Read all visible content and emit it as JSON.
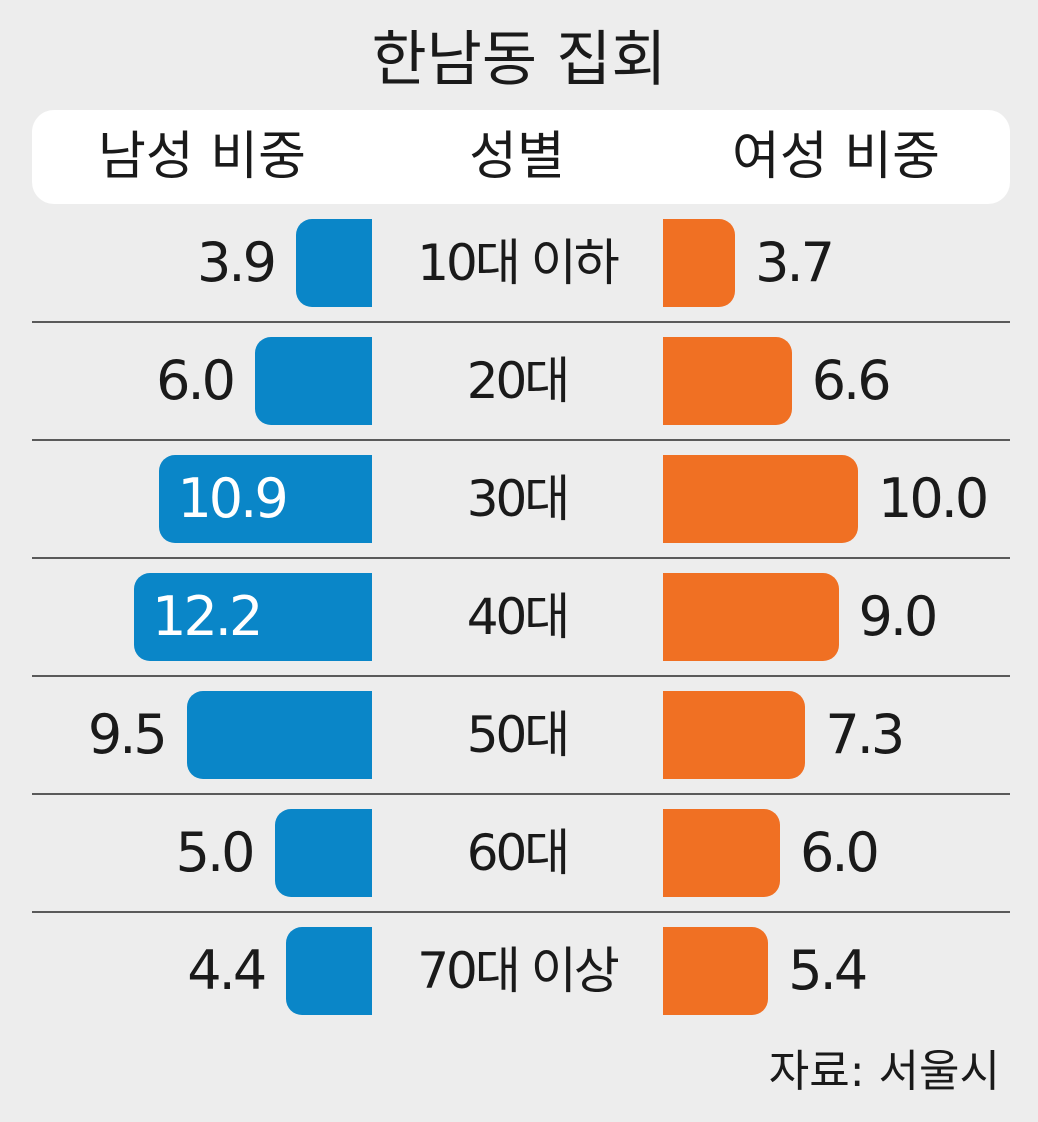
{
  "chart_data": {
    "type": "bar",
    "orientation": "horizontal-diverging",
    "title": "한남동 집회",
    "headers": {
      "left": "남성 비중",
      "center": "성별",
      "right": "여성 비중"
    },
    "categories": [
      "10대 이하",
      "20대",
      "30대",
      "40대",
      "50대",
      "60대",
      "70대 이상"
    ],
    "series": [
      {
        "name": "남성 비중",
        "color": "#0a86c8",
        "values": [
          3.9,
          6.0,
          10.9,
          12.2,
          9.5,
          5.0,
          4.4
        ],
        "labels": [
          "3.9",
          "6.0",
          "10.9",
          "12.2",
          "9.5",
          "5.0",
          "4.4"
        ]
      },
      {
        "name": "여성 비중",
        "color": "#f07023",
        "values": [
          3.7,
          6.6,
          10.0,
          9.0,
          7.3,
          6.0,
          5.4
        ],
        "labels": [
          "3.7",
          "6.6",
          "10.0",
          "9.0",
          "7.3",
          "6.0",
          "5.4"
        ]
      }
    ],
    "grid": false,
    "source": "자료: 서울시"
  }
}
